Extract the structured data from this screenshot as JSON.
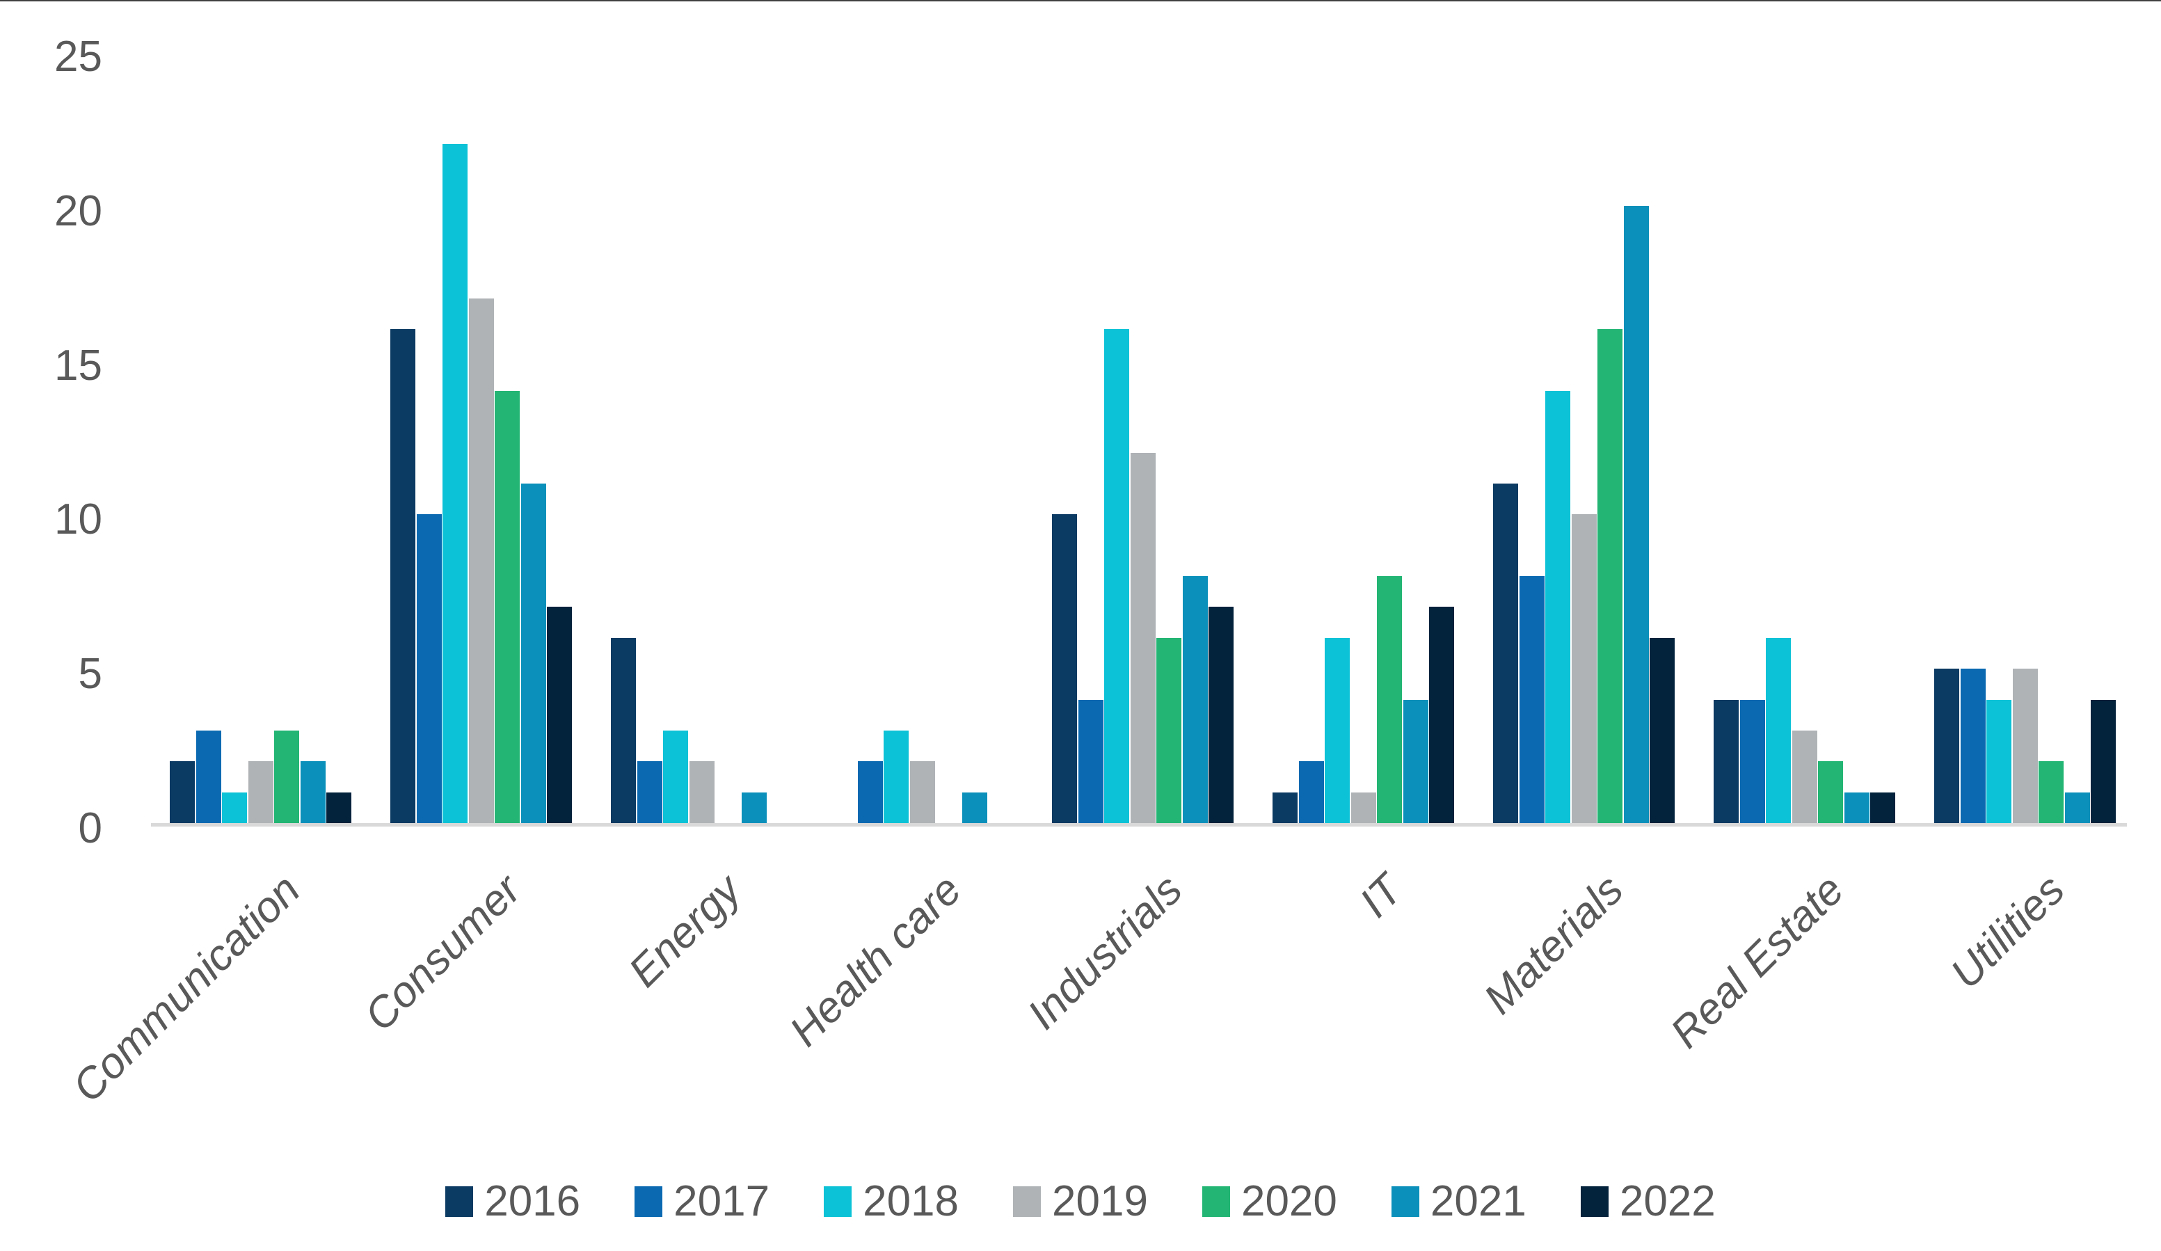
{
  "chart_data": {
    "type": "bar",
    "title": "",
    "categories": [
      "Communication",
      "Consumer",
      "Energy",
      "Health care",
      "Industrials",
      "IT",
      "Materials",
      "Real Estate",
      "Utilities"
    ],
    "series": [
      {
        "name": "2016",
        "color": "#0b3a63",
        "values": [
          2,
          16,
          6,
          0,
          10,
          1,
          11,
          4,
          5
        ]
      },
      {
        "name": "2017",
        "color": "#0a69b1",
        "values": [
          3,
          10,
          2,
          2,
          4,
          2,
          8,
          4,
          5
        ]
      },
      {
        "name": "2018",
        "color": "#0cc2d6",
        "values": [
          1,
          22,
          3,
          3,
          16,
          6,
          14,
          6,
          4
        ]
      },
      {
        "name": "2019",
        "color": "#afb3b6",
        "values": [
          2,
          17,
          2,
          2,
          12,
          1,
          10,
          3,
          5
        ]
      },
      {
        "name": "2020",
        "color": "#22b573",
        "values": [
          3,
          14,
          0,
          0,
          6,
          8,
          16,
          2,
          2
        ]
      },
      {
        "name": "2021",
        "color": "#0a90ba",
        "values": [
          2,
          11,
          1,
          1,
          8,
          4,
          20,
          1,
          1
        ]
      },
      {
        "name": "2022",
        "color": "#03223c",
        "values": [
          1,
          7,
          0,
          0,
          7,
          7,
          6,
          1,
          4
        ]
      }
    ],
    "ylim": [
      0,
      25
    ],
    "yticks": [
      0,
      5,
      10,
      15,
      20,
      25
    ],
    "legend_position": "bottom",
    "grid": false,
    "axis_line_color": "#d9d9d9",
    "text_color": "#595959",
    "background": "#ffffff"
  }
}
